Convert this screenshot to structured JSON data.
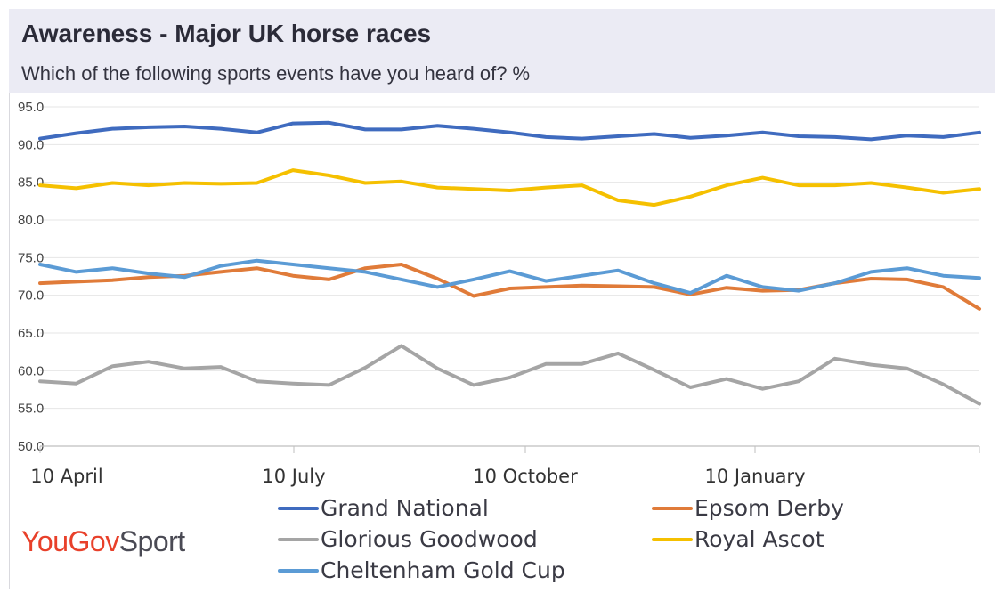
{
  "header": {
    "title": "Awareness - Major UK horse races",
    "subtitle": "Which of the following sports events have you heard of? %"
  },
  "logo": {
    "brand": "YouGov",
    "sub": "Sport"
  },
  "colors": {
    "grand_national": "#3f6bbf",
    "epsom_derby": "#e07b39",
    "glorious_goodwood": "#a5a5a5",
    "royal_ascot": "#f5c000",
    "cheltenham_gold_cup": "#5b9bd5",
    "gridline": "#e6e6e6",
    "axis": "#bfbfbf"
  },
  "chart_data": {
    "type": "line",
    "title": "Awareness - Major UK horse races",
    "subtitle": "Which of the following sports events have you heard of? %",
    "xlabel": "",
    "ylabel": "",
    "ylim": [
      50,
      95
    ],
    "yticks": [
      "95.0",
      "90.0",
      "85.0",
      "80.0",
      "75.0",
      "70.0",
      "65.0",
      "60.0",
      "55.0",
      "50.0"
    ],
    "xticks": [
      "10 April",
      "10 July",
      "10 October",
      "10 January"
    ],
    "grid": true,
    "legend_position": "bottom",
    "x_domain": [
      "10 April",
      "10 May"
    ],
    "x": [
      "10 April",
      "25 April",
      "10 May",
      "25 May",
      "10 June",
      "25 June",
      "10 July",
      "25 July",
      "10 August",
      "25 August",
      "10 September",
      "25 September",
      "10 October",
      "25 October",
      "10 November",
      "25 November",
      "10 December",
      "25 December",
      "10 January",
      "25 January",
      "10 February",
      "25 February",
      "10 March",
      "25 March",
      "10 April",
      "25 April",
      "10 May"
    ],
    "series": [
      {
        "name": "Grand National",
        "values": [
          90.8,
          91.5,
          92.1,
          92.3,
          92.4,
          92.1,
          91.6,
          92.8,
          92.9,
          92.0,
          92.0,
          92.5,
          92.1,
          91.6,
          91.0,
          90.8,
          91.1,
          91.4,
          90.9,
          91.2,
          91.6,
          91.1,
          91.0,
          90.7,
          91.2,
          91.0,
          91.6
        ]
      },
      {
        "name": "Epsom Derby",
        "values": [
          71.6,
          71.8,
          72.0,
          72.4,
          72.6,
          73.1,
          73.6,
          72.6,
          72.1,
          73.6,
          74.1,
          72.2,
          69.9,
          70.9,
          71.1,
          71.3,
          71.2,
          71.1,
          70.1,
          71.0,
          70.6,
          70.7,
          71.6,
          72.2,
          72.1,
          71.1,
          68.2
        ]
      },
      {
        "name": "Glorious Goodwood",
        "values": [
          58.6,
          58.3,
          60.6,
          61.2,
          60.3,
          60.5,
          58.6,
          58.3,
          58.1,
          60.4,
          63.3,
          60.3,
          58.1,
          59.1,
          60.9,
          60.9,
          62.3,
          60.1,
          57.8,
          58.9,
          57.6,
          58.6,
          61.6,
          60.8,
          60.3,
          58.2,
          55.6
        ]
      },
      {
        "name": "Royal Ascot",
        "values": [
          84.6,
          84.2,
          84.9,
          84.6,
          84.9,
          84.8,
          84.9,
          86.6,
          85.9,
          84.9,
          85.1,
          84.3,
          84.1,
          83.9,
          84.3,
          84.6,
          82.6,
          82.0,
          83.1,
          84.6,
          85.6,
          84.6,
          84.6,
          84.9,
          84.3,
          83.6,
          84.1
        ]
      },
      {
        "name": "Cheltenham Gold Cup",
        "values": [
          74.1,
          73.1,
          73.6,
          72.9,
          72.4,
          73.9,
          74.6,
          74.1,
          73.6,
          73.1,
          72.1,
          71.1,
          72.1,
          73.2,
          71.9,
          72.6,
          73.3,
          71.6,
          70.3,
          72.6,
          71.1,
          70.6,
          71.6,
          73.1,
          73.6,
          72.6,
          72.3
        ]
      }
    ]
  }
}
